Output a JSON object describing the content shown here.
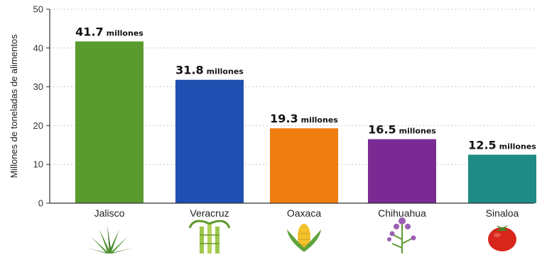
{
  "chart_data": {
    "type": "bar",
    "categories": [
      "Jalisco",
      "Veracruz",
      "Oaxaca",
      "Chihuahua",
      "Sinaloa"
    ],
    "values": [
      41.7,
      31.8,
      19.3,
      16.5,
      12.5
    ],
    "value_labels": [
      "41.7",
      "31.8",
      "19.3",
      "16.5",
      "12.5"
    ],
    "value_unit": "millones",
    "ylabel": "Millones de toneladas de alimentos",
    "ylim": [
      0,
      50
    ],
    "yticks": [
      "0",
      "10",
      "20",
      "30",
      "40",
      "50"
    ],
    "grid": true,
    "colors": [
      "#5a9a2f",
      "#1f4fb0",
      "#f07d0f",
      "#7a2b93",
      "#1f8b85"
    ],
    "icons": [
      "agave-icon",
      "sugarcane-icon",
      "corn-icon",
      "alfalfa-flower-icon",
      "tomato-icon"
    ]
  }
}
